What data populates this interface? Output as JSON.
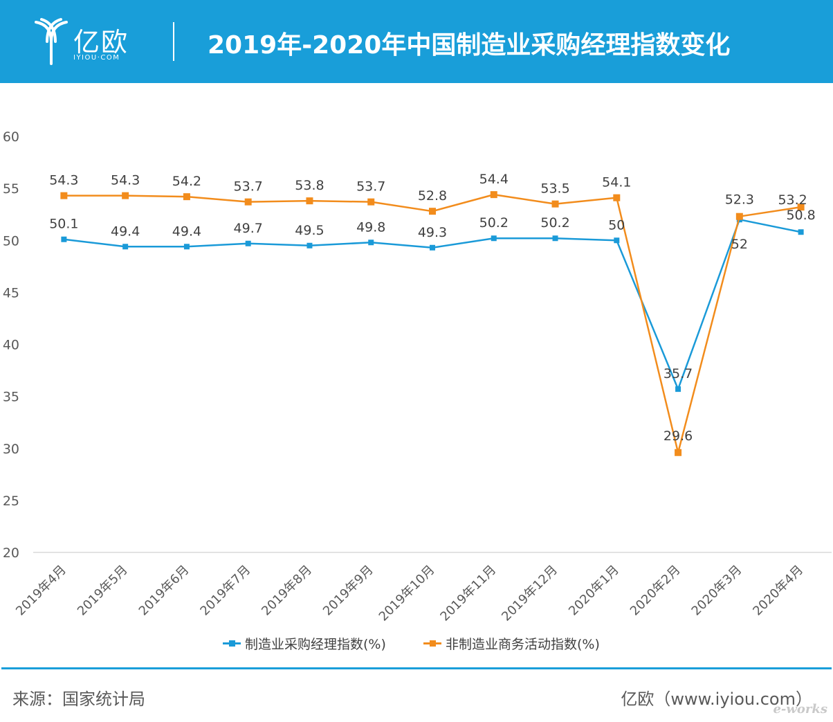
{
  "header": {
    "logo_text": "亿欧",
    "logo_sub": "IYIOU·COM",
    "title": "2019年-2020年中国制造业采购经理指数变化"
  },
  "colors": {
    "header_bg": "#199ed9",
    "series_1": "#1a9ad8",
    "series_2": "#f28c1c",
    "grid": "#d9d9d9",
    "axis_text": "#595959"
  },
  "chart_data": {
    "type": "line",
    "categories": [
      "2019年4月",
      "2019年5月",
      "2019年6月",
      "2019年7月",
      "2019年8月",
      "2019年9月",
      "2019年10月",
      "2019年11月",
      "2019年12月",
      "2020年1月",
      "2020年2月",
      "2020年3月",
      "2020年4月"
    ],
    "series": [
      {
        "name": "制造业采购经理指数(%)",
        "values": [
          50.1,
          49.4,
          49.4,
          49.7,
          49.5,
          49.8,
          49.3,
          50.2,
          50.2,
          50,
          35.7,
          52,
          50.8
        ]
      },
      {
        "name": "非制造业商务活动指数(%)",
        "values": [
          54.3,
          54.3,
          54.2,
          53.7,
          53.8,
          53.7,
          52.8,
          54.4,
          53.5,
          54.1,
          29.6,
          52.3,
          53.2
        ]
      }
    ],
    "ylim": [
      20,
      60
    ],
    "yticks": [
      20,
      25,
      30,
      35,
      40,
      45,
      50,
      55,
      60
    ],
    "grid": false,
    "legend": "bottom-center",
    "xlabel": "",
    "ylabel": ""
  },
  "footer": {
    "source": "来源：国家统计局",
    "credit": "亿欧（www.iyiou.com）",
    "watermark": "e-works"
  }
}
